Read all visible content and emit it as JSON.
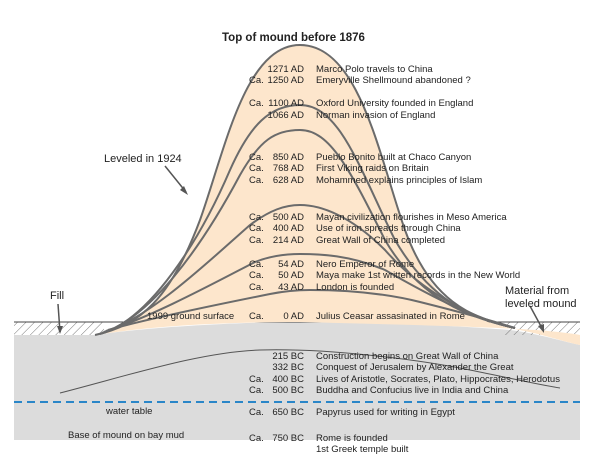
{
  "title": "Top of mound before 1876",
  "labels": {
    "leveled": "Leveled in 1924",
    "fill": "Fill",
    "material_line1": "Material from",
    "material_line2": "leveled mound",
    "ground_surface": "1999 ground surface",
    "water_table": "water table",
    "base": "Base of mound on bay mud"
  },
  "events": [
    {
      "ca": "",
      "date": "1271 AD",
      "event": "Marco Polo travels to China"
    },
    {
      "ca": "Ca.",
      "date": "1250 AD",
      "event": "Emeryville Shellmound abandoned ?"
    },
    {
      "ca": "Ca.",
      "date": "1100 AD",
      "event": "Oxford University founded in England"
    },
    {
      "ca": "",
      "date": "1066 AD",
      "event": "Norman invasion of England"
    },
    {
      "ca": "Ca.",
      "date": "850 AD",
      "event": "Pueblo Bonito built at Chaco Canyon"
    },
    {
      "ca": "Ca.",
      "date": "768 AD",
      "event": "First Viking raids on Britain"
    },
    {
      "ca": "Ca.",
      "date": "628 AD",
      "event": "Mohammed explains principles of Islam"
    },
    {
      "ca": "Ca.",
      "date": "500 AD",
      "event": "Mayan civilization flourishes in Meso America"
    },
    {
      "ca": "Ca.",
      "date": "400 AD",
      "event": "Use of iron spreads through China"
    },
    {
      "ca": "Ca.",
      "date": "214 AD",
      "event": "Great Wall of China completed"
    },
    {
      "ca": "Ca.",
      "date": "54 AD",
      "event": "Nero Emperor of Rome"
    },
    {
      "ca": "Ca.",
      "date": "50 AD",
      "event": "Maya make 1st written records in the New World"
    },
    {
      "ca": "Ca.",
      "date": "43 AD",
      "event": "London is founded"
    },
    {
      "ca": "Ca.",
      "date": "0 AD",
      "event": "Julius Ceasar assasinated in Rome"
    },
    {
      "ca": "",
      "date": "215 BC",
      "event": "Construction begins on Great Wall of China"
    },
    {
      "ca": "",
      "date": "332 BC",
      "event": "Conquest of Jerusalem by Alexander the Great"
    },
    {
      "ca": "Ca.",
      "date": "400 BC",
      "event": "Lives of Aristotle, Socrates, Plato, Hippocrates, Herodotus"
    },
    {
      "ca": "Ca.",
      "date": "500 BC",
      "event": "Buddha and Confucius live in India and China"
    },
    {
      "ca": "Ca.",
      "date": "650 BC",
      "event": "Papyrus used for writing in Egypt"
    },
    {
      "ca": "Ca.",
      "date": "750 BC",
      "event": "Rome is founded"
    },
    {
      "ca": "",
      "date": "",
      "event": "1st Greek temple built"
    }
  ],
  "colors": {
    "mound_fill": "#fde6cc",
    "ground_fill": "#dcdcdc",
    "layer_line": "#6b6b6b",
    "water_line": "#2a86c8"
  }
}
